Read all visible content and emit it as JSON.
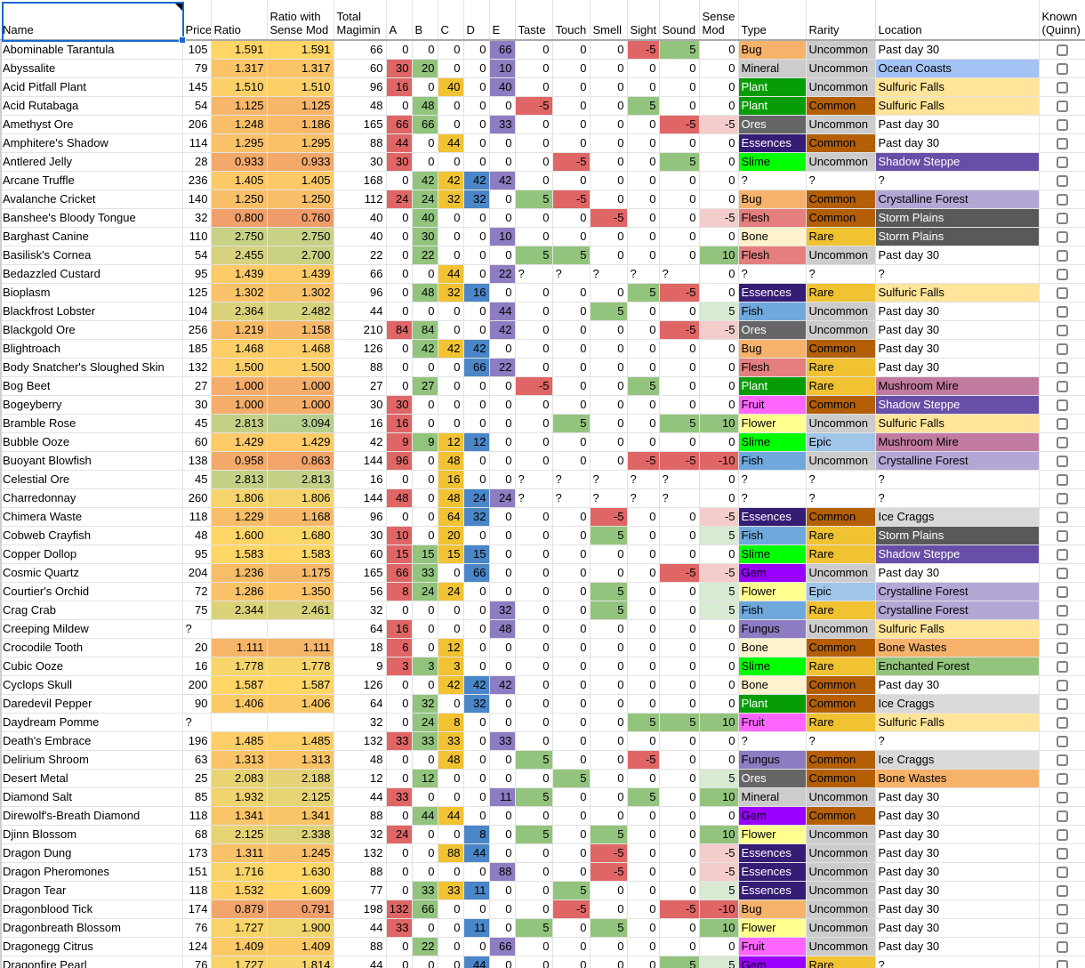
{
  "sheet": {
    "selected_cell": "Name",
    "selection_color": "#1967d2",
    "has_note_marker": true,
    "known_default_checked": false
  },
  "columns": [
    {
      "key": "name",
      "label": "Name"
    },
    {
      "key": "price",
      "label": "Price"
    },
    {
      "key": "ratio",
      "label": "Ratio"
    },
    {
      "key": "ratio_sm",
      "label": "Ratio with Sense Mod"
    },
    {
      "key": "total",
      "label": "Total Magimin"
    },
    {
      "key": "a",
      "label": "A"
    },
    {
      "key": "b",
      "label": "B"
    },
    {
      "key": "c",
      "label": "C"
    },
    {
      "key": "d",
      "label": "D"
    },
    {
      "key": "e",
      "label": "E"
    },
    {
      "key": "taste",
      "label": "Taste"
    },
    {
      "key": "touch",
      "label": "Touch"
    },
    {
      "key": "smell",
      "label": "Smell"
    },
    {
      "key": "sight",
      "label": "Sight"
    },
    {
      "key": "sound",
      "label": "Sound"
    },
    {
      "key": "sense_mod",
      "label": "Sense Mod"
    },
    {
      "key": "type",
      "label": "Type"
    },
    {
      "key": "rarity",
      "label": "Rarity"
    },
    {
      "key": "location",
      "label": "Location"
    },
    {
      "key": "known",
      "label": "Known (Quinn)"
    }
  ],
  "fields": [
    "name",
    "price",
    "ratio",
    "ratio_sm",
    "total",
    "a",
    "b",
    "c",
    "d",
    "e",
    "taste",
    "touch",
    "smell",
    "sight",
    "sound",
    "sense_mod",
    "type",
    "rarity",
    "location"
  ],
  "rows": [
    [
      "Abominable Tarantula",
      105,
      "1.591",
      "1.591",
      66,
      0,
      0,
      0,
      0,
      66,
      0,
      0,
      0,
      -5,
      5,
      0,
      "Bug",
      "Uncommon",
      "Past day 30"
    ],
    [
      "Abyssalite",
      79,
      "1.317",
      "1.317",
      60,
      30,
      20,
      0,
      0,
      10,
      0,
      0,
      0,
      0,
      0,
      0,
      "Mineral",
      "Uncommon",
      "Ocean Coasts"
    ],
    [
      "Acid Pitfall Plant",
      145,
      "1.510",
      "1.510",
      96,
      16,
      0,
      40,
      0,
      40,
      0,
      0,
      0,
      0,
      0,
      0,
      "Plant",
      "Uncommon",
      "Sulfuric Falls"
    ],
    [
      "Acid Rutabaga",
      54,
      "1.125",
      "1.125",
      48,
      0,
      48,
      0,
      0,
      0,
      -5,
      0,
      0,
      5,
      0,
      0,
      "Plant",
      "Common",
      "Sulfuric Falls"
    ],
    [
      "Amethyst Ore",
      206,
      "1.248",
      "1.186",
      165,
      66,
      66,
      0,
      0,
      33,
      0,
      0,
      0,
      0,
      -5,
      -5,
      "Ores",
      "Uncommon",
      "Past day 30"
    ],
    [
      "Amphitere's Shadow",
      114,
      "1.295",
      "1.295",
      88,
      44,
      0,
      44,
      0,
      0,
      0,
      0,
      0,
      0,
      0,
      0,
      "Essences",
      "Common",
      "Past day 30"
    ],
    [
      "Antlered Jelly",
      28,
      "0.933",
      "0.933",
      30,
      30,
      0,
      0,
      0,
      0,
      0,
      -5,
      0,
      0,
      5,
      0,
      "Slime",
      "Uncommon",
      "Shadow Steppe"
    ],
    [
      "Arcane Truffle",
      236,
      "1.405",
      "1.405",
      168,
      0,
      42,
      42,
      42,
      42,
      0,
      0,
      0,
      0,
      0,
      0,
      "?",
      "?",
      "?"
    ],
    [
      "Avalanche Cricket",
      140,
      "1.250",
      "1.250",
      112,
      24,
      24,
      32,
      32,
      0,
      5,
      -5,
      0,
      0,
      0,
      0,
      "Bug",
      "Common",
      "Crystalline Forest"
    ],
    [
      "Banshee's Bloody Tongue",
      32,
      "0.800",
      "0.760",
      40,
      0,
      40,
      0,
      0,
      0,
      0,
      0,
      -5,
      0,
      0,
      -5,
      "Flesh",
      "Common",
      "Storm Plains"
    ],
    [
      "Barghast Canine",
      110,
      "2.750",
      "2.750",
      40,
      0,
      30,
      0,
      0,
      10,
      0,
      0,
      0,
      0,
      0,
      0,
      "Bone",
      "Rare",
      "Storm Plains"
    ],
    [
      "Basilisk's Cornea",
      54,
      "2.455",
      "2.700",
      22,
      0,
      22,
      0,
      0,
      0,
      5,
      5,
      0,
      0,
      0,
      10,
      "Flesh",
      "Uncommon",
      "Past day 30"
    ],
    [
      "Bedazzled Custard",
      95,
      "1.439",
      "1.439",
      66,
      0,
      0,
      44,
      0,
      22,
      "?",
      "?",
      "?",
      "?",
      "?",
      0,
      "?",
      "?",
      "?"
    ],
    [
      "Bioplasm",
      125,
      "1.302",
      "1.302",
      96,
      0,
      48,
      32,
      16,
      0,
      0,
      0,
      0,
      5,
      -5,
      0,
      "Essences",
      "Rare",
      "Sulfuric Falls"
    ],
    [
      "Blackfrost Lobster",
      104,
      "2.364",
      "2.482",
      44,
      0,
      0,
      0,
      0,
      44,
      0,
      0,
      5,
      0,
      0,
      5,
      "Fish",
      "Uncommon",
      "Past day 30"
    ],
    [
      "Blackgold Ore",
      256,
      "1.219",
      "1.158",
      210,
      84,
      84,
      0,
      0,
      42,
      0,
      0,
      0,
      0,
      -5,
      -5,
      "Ores",
      "Uncommon",
      "Past day 30"
    ],
    [
      "Blightroach",
      185,
      "1.468",
      "1.468",
      126,
      0,
      42,
      42,
      42,
      0,
      0,
      0,
      0,
      0,
      0,
      0,
      "Bug",
      "Common",
      "Past day 30"
    ],
    [
      "Body Snatcher's Sloughed Skin",
      132,
      "1.500",
      "1.500",
      88,
      0,
      0,
      0,
      66,
      22,
      0,
      0,
      0,
      0,
      0,
      0,
      "Flesh",
      "Rare",
      "Past day 30"
    ],
    [
      "Bog Beet",
      27,
      "1.000",
      "1.000",
      27,
      0,
      27,
      0,
      0,
      0,
      -5,
      0,
      0,
      5,
      0,
      0,
      "Plant",
      "Rare",
      "Mushroom Mire"
    ],
    [
      "Bogeyberry",
      30,
      "1.000",
      "1.000",
      30,
      30,
      0,
      0,
      0,
      0,
      0,
      0,
      0,
      0,
      0,
      0,
      "Fruit",
      "Common",
      "Shadow Steppe"
    ],
    [
      "Bramble Rose",
      45,
      "2.813",
      "3.094",
      16,
      16,
      0,
      0,
      0,
      0,
      0,
      5,
      0,
      0,
      5,
      10,
      "Flower",
      "Uncommon",
      "Sulfuric Falls"
    ],
    [
      "Bubble Ooze",
      60,
      "1.429",
      "1.429",
      42,
      9,
      9,
      12,
      12,
      0,
      0,
      0,
      0,
      0,
      0,
      0,
      "Slime",
      "Epic",
      "Mushroom Mire"
    ],
    [
      "Buoyant Blowfish",
      138,
      "0.958",
      "0.863",
      144,
      96,
      0,
      48,
      0,
      0,
      0,
      0,
      0,
      -5,
      -5,
      -10,
      "Fish",
      "Uncommon",
      "Crystalline Forest"
    ],
    [
      "Celestial Ore",
      45,
      "2.813",
      "2.813",
      16,
      0,
      0,
      16,
      0,
      0,
      "?",
      "?",
      "?",
      "?",
      "?",
      0,
      "?",
      "?",
      "?"
    ],
    [
      "Charredonnay",
      260,
      "1.806",
      "1.806",
      144,
      48,
      0,
      48,
      24,
      24,
      "?",
      "?",
      "?",
      "?",
      "?",
      0,
      "?",
      "?",
      "?"
    ],
    [
      "Chimera Waste",
      118,
      "1.229",
      "1.168",
      96,
      0,
      0,
      64,
      32,
      0,
      0,
      0,
      -5,
      0,
      0,
      -5,
      "Essences",
      "Common",
      "Ice Craggs"
    ],
    [
      "Cobweb Crayfish",
      48,
      "1.600",
      "1.680",
      30,
      10,
      0,
      20,
      0,
      0,
      0,
      0,
      5,
      0,
      0,
      5,
      "Fish",
      "Rare",
      "Storm Plains"
    ],
    [
      "Copper Dollop",
      95,
      "1.583",
      "1.583",
      60,
      15,
      15,
      15,
      15,
      0,
      0,
      0,
      0,
      0,
      0,
      0,
      "Slime",
      "Rare",
      "Shadow Steppe"
    ],
    [
      "Cosmic Quartz",
      204,
      "1.236",
      "1.175",
      165,
      66,
      33,
      0,
      66,
      0,
      0,
      0,
      0,
      0,
      -5,
      -5,
      "Gem",
      "Uncommon",
      "Past day 30"
    ],
    [
      "Courtier's Orchid",
      72,
      "1.286",
      "1.350",
      56,
      8,
      24,
      24,
      0,
      0,
      0,
      0,
      5,
      0,
      0,
      5,
      "Flower",
      "Epic",
      "Crystalline Forest"
    ],
    [
      "Crag Crab",
      75,
      "2.344",
      "2.461",
      32,
      0,
      0,
      0,
      0,
      32,
      0,
      0,
      5,
      0,
      0,
      5,
      "Fish",
      "Rare",
      "Crystalline Forest"
    ],
    [
      "Creeping Mildew",
      "?",
      "",
      "",
      64,
      16,
      0,
      0,
      0,
      48,
      0,
      0,
      0,
      0,
      0,
      0,
      "Fungus",
      "Uncommon",
      "Sulfuric Falls"
    ],
    [
      "Crocodile Tooth",
      20,
      "1.111",
      "1.111",
      18,
      6,
      0,
      12,
      0,
      0,
      0,
      0,
      0,
      0,
      0,
      0,
      "Bone",
      "Common",
      "Bone Wastes"
    ],
    [
      "Cubic Ooze",
      16,
      "1.778",
      "1.778",
      9,
      3,
      3,
      3,
      0,
      0,
      0,
      0,
      0,
      0,
      0,
      0,
      "Slime",
      "Rare",
      "Enchanted Forest"
    ],
    [
      "Cyclops Skull",
      200,
      "1.587",
      "1.587",
      126,
      0,
      0,
      42,
      42,
      42,
      0,
      0,
      0,
      0,
      0,
      0,
      "Bone",
      "Common",
      "Past day 30"
    ],
    [
      "Daredevil Pepper",
      90,
      "1.406",
      "1.406",
      64,
      0,
      32,
      0,
      32,
      0,
      0,
      0,
      0,
      0,
      0,
      0,
      "Plant",
      "Common",
      "Ice Craggs"
    ],
    [
      "Daydream Pomme",
      "?",
      "",
      "",
      32,
      0,
      24,
      8,
      0,
      0,
      0,
      0,
      0,
      5,
      5,
      10,
      "Fruit",
      "Rare",
      "Sulfuric Falls"
    ],
    [
      "Death's Embrace",
      196,
      "1.485",
      "1.485",
      132,
      33,
      33,
      33,
      0,
      33,
      0,
      0,
      0,
      0,
      0,
      0,
      "?",
      "?",
      "?"
    ],
    [
      "Delirium Shroom",
      63,
      "1.313",
      "1.313",
      48,
      0,
      0,
      48,
      0,
      0,
      5,
      0,
      0,
      -5,
      0,
      0,
      "Fungus",
      "Common",
      "Ice Craggs"
    ],
    [
      "Desert Metal",
      25,
      "2.083",
      "2.188",
      12,
      0,
      12,
      0,
      0,
      0,
      0,
      5,
      0,
      0,
      0,
      5,
      "Ores",
      "Common",
      "Bone Wastes"
    ],
    [
      "Diamond Salt",
      85,
      "1.932",
      "2.125",
      44,
      33,
      0,
      0,
      0,
      11,
      5,
      0,
      0,
      5,
      0,
      10,
      "Mineral",
      "Uncommon",
      "Past day 30"
    ],
    [
      "Direwolf's-Breath Diamond",
      118,
      "1.341",
      "1.341",
      88,
      0,
      44,
      44,
      0,
      0,
      0,
      0,
      0,
      0,
      0,
      0,
      "Gem",
      "Common",
      "Past day 30"
    ],
    [
      "Djinn Blossom",
      68,
      "2.125",
      "2.338",
      32,
      24,
      0,
      0,
      8,
      0,
      5,
      0,
      5,
      0,
      0,
      10,
      "Flower",
      "Uncommon",
      "Past day 30"
    ],
    [
      "Dragon Dung",
      173,
      "1.311",
      "1.245",
      132,
      0,
      0,
      88,
      44,
      0,
      0,
      0,
      -5,
      0,
      0,
      -5,
      "Essences",
      "Uncommon",
      "Past day 30"
    ],
    [
      "Dragon Pheromones",
      151,
      "1.716",
      "1.630",
      88,
      0,
      0,
      0,
      0,
      88,
      0,
      0,
      -5,
      0,
      0,
      -5,
      "Essences",
      "Uncommon",
      "Past day 30"
    ],
    [
      "Dragon Tear",
      118,
      "1.532",
      "1.609",
      77,
      0,
      33,
      33,
      11,
      0,
      0,
      5,
      0,
      0,
      0,
      5,
      "Essences",
      "Uncommon",
      "Past day 30"
    ],
    [
      "Dragonblood Tick",
      174,
      "0.879",
      "0.791",
      198,
      132,
      66,
      0,
      0,
      0,
      0,
      -5,
      0,
      0,
      -5,
      -10,
      "Bug",
      "Uncommon",
      "Past day 30"
    ],
    [
      "Dragonbreath Blossom",
      76,
      "1.727",
      "1.900",
      44,
      33,
      0,
      0,
      11,
      0,
      5,
      0,
      5,
      0,
      0,
      10,
      "Flower",
      "Uncommon",
      "Past day 30"
    ],
    [
      "Dragonegg Citrus",
      124,
      "1.409",
      "1.409",
      88,
      0,
      22,
      0,
      0,
      66,
      0,
      0,
      0,
      0,
      0,
      0,
      "Fruit",
      "Uncommon",
      "Past day 30"
    ],
    [
      "Dragonfire Pearl",
      76,
      "1.727",
      "1.814",
      44,
      0,
      0,
      0,
      44,
      0,
      0,
      0,
      0,
      0,
      5,
      5,
      "Gem",
      "Rare",
      "?"
    ]
  ],
  "colors": {
    "gridline": "#e2e2e2",
    "magimin": {
      "a": "#E06666",
      "b": "#93C47D",
      "c": "#F1C232",
      "d": "#4A86C8",
      "e": "#8E7CC3"
    },
    "sense": {
      "pos": "#93C47D",
      "neg": "#E06666"
    },
    "sense_mod": {
      "10": "#93C47D",
      "5": "#D9EAD3",
      "-5": "#F4CCCC",
      "-10": "#E06666"
    },
    "ratio_scale": [
      [
        0.76,
        "#F09D6B"
      ],
      [
        1.6,
        "#FFD666"
      ],
      [
        3.1,
        "#B7CF8E"
      ]
    ],
    "type": {
      "Bug": "#F6B26B",
      "Mineral": "#CCCCCC",
      "Plant": "#079D07",
      "Ores": "#666666",
      "Essences": "#351C75",
      "Slime": "#00FF00",
      "Flesh": "#E57E7E",
      "Bone": "#FFF2CC",
      "Fish": "#6FA8DC",
      "Fruit": "#FF66FF",
      "Flower": "#FFFF8F",
      "Gem": "#9900FF",
      "Fungus": "#8E7CC3"
    },
    "type_white_text": [
      "Plant",
      "Ores",
      "Essences"
    ],
    "rarity": {
      "Common": "#B45F06",
      "Uncommon": "#CCCCCC",
      "Rare": "#F1C232",
      "Epic": "#9FC5E8"
    },
    "location": {
      "Past day 30": "#FFFFFF",
      "Ocean Coasts": "#A4C2F4",
      "Sulfuric Falls": "#FFE599",
      "Shadow Steppe": "#674EA7",
      "Storm Plains": "#595959",
      "Crystalline Forest": "#B4A7D6",
      "Mushroom Mire": "#C27BA0",
      "Ice Craggs": "#D9D9D9",
      "Bone Wastes": "#F6B26B",
      "Enchanted Forest": "#93C47D"
    },
    "location_white_text": [
      "Shadow Steppe",
      "Storm Plains"
    ]
  }
}
